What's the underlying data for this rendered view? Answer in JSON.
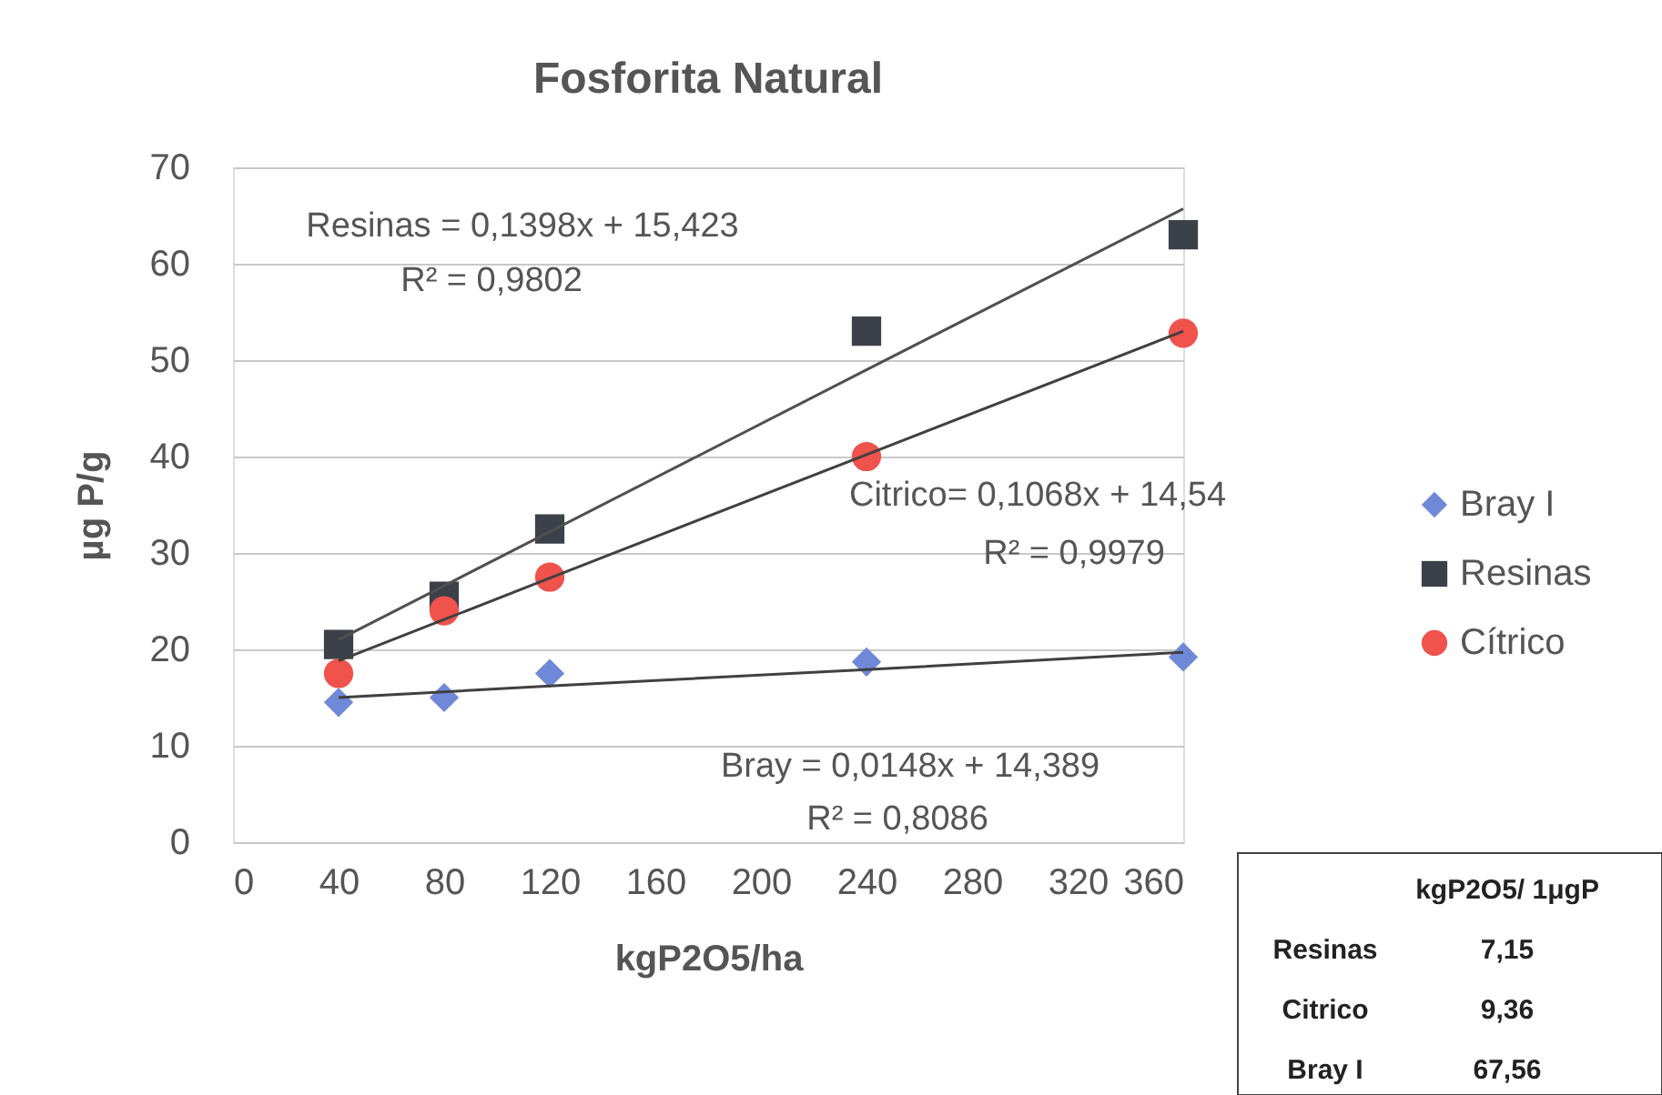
{
  "chart_data": {
    "type": "scatter",
    "title": "Fosforita Natural",
    "xlabel": "kgP2O5/ha",
    "ylabel": "µg P/g",
    "xlim": [
      0,
      360
    ],
    "xticks": [
      0,
      40,
      80,
      120,
      160,
      200,
      240,
      280,
      320,
      360
    ],
    "ylim": [
      0,
      70
    ],
    "yticks": [
      0,
      10,
      20,
      30,
      40,
      50,
      60,
      70
    ],
    "grid": "y",
    "legend": "right",
    "x": [
      40,
      80,
      120,
      240,
      360
    ],
    "series": [
      {
        "name": "Bray I",
        "color": "#7088d8",
        "marker": "diamond",
        "values": [
          14.5,
          15,
          17.5,
          18.7,
          19.2
        ]
      },
      {
        "name": "Resinas",
        "color": "#3c4048",
        "marker": "square",
        "values": [
          20.5,
          25.5,
          32.5,
          53,
          63
        ]
      },
      {
        "name": "Cítrico",
        "color": "#f0524c",
        "marker": "circle",
        "values": [
          17.5,
          24,
          27.5,
          40,
          52.8
        ]
      },
      {
        "type": "line",
        "color": "#404040",
        "values": [
          15.0,
          15.6,
          16.2,
          17.9,
          19.7
        ]
      },
      {
        "type": "line",
        "color": "#505050",
        "values": [
          21.0,
          26.6,
          32.2,
          49.0,
          65.7
        ]
      },
      {
        "type": "line",
        "color": "#404040",
        "values": [
          18.8,
          23.1,
          27.4,
          40.2,
          53.0
        ]
      }
    ],
    "annotations": [
      "Resinas = 0,1398x + 15,423",
      "R² = 0,9802",
      "Citrico= 0,1068x + 14,54",
      "R² = 0,9979",
      "Bray = 0,0148x + 14,389",
      "R² = 0,8086",
      "kgP2O5/ 1μgP",
      "Resinas",
      "7,15",
      "Citrico",
      "9,36",
      "Bray I",
      "67,56"
    ]
  }
}
